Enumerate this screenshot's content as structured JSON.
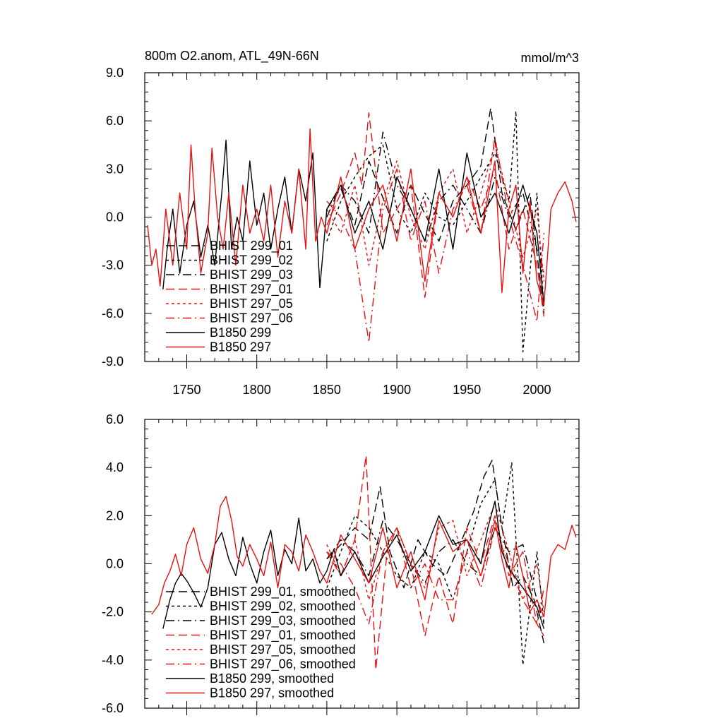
{
  "chart_data": [
    {
      "type": "line",
      "title": "800m O2.anom, ATL_49N-66N",
      "units": "mmol/m^3",
      "xlabel": "",
      "ylabel": "",
      "xlim": [
        1720,
        2030
      ],
      "ylim": [
        -9.0,
        9.0
      ],
      "y_ticks": [
        "9.0",
        "6.0",
        "3.0",
        "0.0",
        "-3.0",
        "-6.0",
        "-9.0"
      ],
      "x_ticks": [
        "1750",
        "1800",
        "1850",
        "1900",
        "1950",
        "2000"
      ],
      "legend_position": "lower-left",
      "series": [
        {
          "name": "BHIST 299_01",
          "color": "#000000",
          "dash": "long-dash",
          "x": [
            1850,
            1860,
            1870,
            1880,
            1890,
            1900,
            1910,
            1920,
            1930,
            1940,
            1950,
            1960,
            1967,
            1975,
            1985,
            1995,
            2005
          ],
          "y": [
            0.5,
            1.8,
            -0.5,
            3.5,
            1.2,
            -1.0,
            2.0,
            0.2,
            -1.5,
            1.0,
            2.0,
            3.2,
            6.8,
            1.5,
            -0.8,
            1.5,
            -6.0
          ]
        },
        {
          "name": "BHIST 299_02",
          "color": "#000000",
          "dash": "short-dash",
          "x": [
            1850,
            1860,
            1870,
            1880,
            1890,
            1900,
            1910,
            1920,
            1930,
            1940,
            1950,
            1960,
            1970,
            1980,
            1985,
            1990,
            2000,
            2005
          ],
          "y": [
            -1.5,
            1.0,
            2.5,
            3.8,
            4.5,
            0.5,
            -1.0,
            1.5,
            0.0,
            -0.5,
            1.0,
            2.5,
            4.0,
            1.0,
            6.6,
            -8.4,
            1.5,
            -5.8
          ]
        },
        {
          "name": "BHIST 299_03",
          "color": "#000000",
          "dash": "dash-dot",
          "x": [
            1850,
            1860,
            1870,
            1880,
            1890,
            1900,
            1910,
            1920,
            1930,
            1940,
            1950,
            1960,
            1970,
            1980,
            1990,
            2000,
            2005
          ],
          "y": [
            0.0,
            2.0,
            1.0,
            -1.0,
            5.3,
            2.0,
            0.5,
            -1.5,
            1.0,
            2.0,
            0.5,
            -1.0,
            2.5,
            0.0,
            1.5,
            -2.0,
            -3.5
          ]
        },
        {
          "name": "BHIST 297_01",
          "color": "#e81010",
          "dash": "long-dash",
          "x": [
            1850,
            1860,
            1870,
            1875,
            1880,
            1890,
            1900,
            1910,
            1920,
            1930,
            1940,
            1950,
            1960,
            1970,
            1980,
            1990,
            2000,
            2005
          ],
          "y": [
            -0.5,
            1.5,
            4.0,
            2.0,
            6.5,
            -1.0,
            0.5,
            2.0,
            -5.0,
            1.5,
            0.0,
            2.5,
            0.5,
            3.0,
            -2.0,
            0.5,
            -3.0,
            -6.2
          ]
        },
        {
          "name": "BHIST 297_05",
          "color": "#e81010",
          "dash": "short-dash",
          "x": [
            1850,
            1860,
            1870,
            1880,
            1890,
            1900,
            1910,
            1920,
            1930,
            1940,
            1950,
            1960,
            1970,
            1980,
            1990,
            2000,
            2005
          ],
          "y": [
            0.5,
            -1.0,
            2.0,
            -3.0,
            1.0,
            3.5,
            0.0,
            -2.0,
            1.5,
            3.0,
            -1.0,
            1.5,
            4.5,
            1.0,
            -2.5,
            0.5,
            -4.0
          ]
        },
        {
          "name": "BHIST 297_06",
          "color": "#e81010",
          "dash": "dash-dot",
          "x": [
            1850,
            1860,
            1870,
            1880,
            1890,
            1900,
            1910,
            1920,
            1930,
            1940,
            1950,
            1960,
            1970,
            1980,
            1990,
            2000,
            2005
          ],
          "y": [
            1.0,
            0.0,
            -2.0,
            -7.8,
            0.5,
            3.0,
            -1.5,
            1.0,
            -3.5,
            0.5,
            2.0,
            -1.0,
            5.0,
            0.0,
            -3.0,
            -6.5,
            -1.0
          ]
        },
        {
          "name": "B1850 299",
          "color": "#000000",
          "dash": "solid",
          "x": [
            1733,
            1736,
            1740,
            1745,
            1750,
            1755,
            1760,
            1765,
            1770,
            1775,
            1778,
            1782,
            1786,
            1790,
            1795,
            1800,
            1805,
            1810,
            1815,
            1820,
            1825,
            1830,
            1835,
            1840,
            1845,
            1850,
            1860,
            1870,
            1880,
            1890,
            1900,
            1910,
            1920,
            1930,
            1940,
            1950,
            1960,
            1970,
            1980,
            1990,
            2000,
            2005
          ],
          "y": [
            -4.5,
            -2.0,
            0.5,
            -3.5,
            -0.5,
            1.0,
            -2.5,
            -0.5,
            -3.0,
            1.5,
            4.8,
            -2.0,
            0.0,
            -1.5,
            3.5,
            -0.5,
            1.5,
            -2.0,
            0.5,
            2.5,
            -1.0,
            3.0,
            1.0,
            4.0,
            -4.4,
            0.5,
            2.0,
            -1.0,
            1.0,
            -2.0,
            2.5,
            0.5,
            -1.5,
            3.0,
            -2.0,
            4.0,
            0.0,
            1.5,
            -1.0,
            2.0,
            -1.0,
            -5.5
          ]
        },
        {
          "name": "B1850 297",
          "color": "#e81010",
          "dash": "solid",
          "x": [
            1722,
            1725,
            1728,
            1731,
            1735,
            1740,
            1745,
            1750,
            1753,
            1756,
            1760,
            1765,
            1768,
            1772,
            1776,
            1780,
            1785,
            1790,
            1795,
            1800,
            1805,
            1810,
            1815,
            1820,
            1825,
            1830,
            1835,
            1838,
            1842,
            1846,
            1850,
            1860,
            1870,
            1880,
            1890,
            1900,
            1910,
            1920,
            1930,
            1940,
            1950,
            1960,
            1970,
            1975,
            1980,
            1985,
            1990,
            1995,
            2000,
            2005,
            2010,
            2015,
            2020,
            2025,
            2028
          ],
          "y": [
            -0.5,
            -3.0,
            -2.0,
            -4.3,
            0.5,
            -3.0,
            1.5,
            -2.0,
            4.5,
            0.5,
            -3.5,
            -1.0,
            4.3,
            0.0,
            -2.0,
            1.5,
            -3.0,
            2.0,
            -1.0,
            0.5,
            -1.5,
            2.0,
            -2.5,
            1.0,
            -1.0,
            3.0,
            -2.0,
            5.5,
            -1.5,
            0.0,
            -1.0,
            2.5,
            -2.0,
            0.5,
            2.0,
            -1.5,
            3.0,
            -4.0,
            1.5,
            0.0,
            2.5,
            -1.0,
            3.5,
            -4.7,
            0.5,
            2.0,
            -3.5,
            1.0,
            -4.0,
            -5.5,
            0.5,
            1.5,
            2.2,
            1.0,
            -0.3
          ]
        }
      ]
    },
    {
      "type": "line",
      "title": "",
      "xlabel": "",
      "ylabel": "",
      "xlim": [
        1720,
        2030
      ],
      "ylim": [
        -6.0,
        6.0
      ],
      "y_ticks": [
        "6.0",
        "4.0",
        "2.0",
        "0.0",
        "-2.0",
        "-4.0",
        "-6.0"
      ],
      "legend_position": "lower-left",
      "series": [
        {
          "name": "BHIST 299_01, smoothed",
          "color": "#000000",
          "dash": "long-dash",
          "x": [
            1850,
            1860,
            1870,
            1880,
            1888,
            1895,
            1905,
            1915,
            1925,
            1935,
            1945,
            1955,
            1962,
            1968,
            1975,
            1983,
            1990,
            1998,
            2005
          ],
          "y": [
            0.2,
            0.8,
            1.5,
            1.0,
            3.2,
            0.5,
            -1.0,
            1.0,
            0.0,
            -0.5,
            0.8,
            2.2,
            3.6,
            4.3,
            1.5,
            -1.0,
            -0.5,
            -1.5,
            -3.3
          ]
        },
        {
          "name": "BHIST 299_02, smoothed",
          "color": "#000000",
          "dash": "short-dash",
          "x": [
            1850,
            1860,
            1870,
            1880,
            1890,
            1900,
            1910,
            1920,
            1930,
            1940,
            1950,
            1960,
            1970,
            1975,
            1982,
            1990,
            2000,
            2005
          ],
          "y": [
            -1.0,
            0.5,
            2.0,
            1.5,
            0.5,
            -0.5,
            -1.0,
            0.5,
            0.0,
            -1.5,
            0.5,
            2.5,
            3.5,
            1.5,
            4.2,
            -4.2,
            0.5,
            -2.5
          ]
        },
        {
          "name": "BHIST 299_03, smoothed",
          "color": "#000000",
          "dash": "dash-dot",
          "x": [
            1850,
            1860,
            1870,
            1880,
            1890,
            1900,
            1910,
            1920,
            1930,
            1940,
            1950,
            1960,
            1970,
            1980,
            1990,
            2000,
            2005
          ],
          "y": [
            0.2,
            1.0,
            0.5,
            -0.5,
            1.8,
            1.0,
            0.0,
            -0.8,
            0.5,
            1.0,
            0.0,
            -0.5,
            1.5,
            0.5,
            0.8,
            -1.5,
            -2.5
          ]
        },
        {
          "name": "BHIST 297_01, smoothed",
          "color": "#e81010",
          "dash": "long-dash",
          "x": [
            1850,
            1860,
            1870,
            1878,
            1885,
            1893,
            1900,
            1910,
            1920,
            1930,
            1940,
            1950,
            1960,
            1970,
            1980,
            1990,
            2000,
            2005
          ],
          "y": [
            0.5,
            -0.5,
            1.0,
            4.5,
            -4.4,
            0.5,
            1.5,
            0.0,
            -3.0,
            -0.5,
            -2.5,
            1.5,
            0.0,
            2.0,
            -0.5,
            0.5,
            -2.5,
            -3.0
          ]
        },
        {
          "name": "BHIST 297_05, smoothed",
          "color": "#e81010",
          "dash": "short-dash",
          "x": [
            1850,
            1860,
            1870,
            1880,
            1890,
            1900,
            1910,
            1920,
            1930,
            1940,
            1950,
            1960,
            1970,
            1980,
            1990,
            2000,
            2005
          ],
          "y": [
            0.8,
            -0.5,
            1.0,
            -1.5,
            0.5,
            1.5,
            0.0,
            -1.0,
            1.5,
            1.8,
            -0.5,
            1.0,
            2.5,
            0.5,
            -1.5,
            0.0,
            -2.0
          ]
        },
        {
          "name": "BHIST 297_06, smoothed",
          "color": "#e81010",
          "dash": "dash-dot",
          "x": [
            1850,
            1860,
            1870,
            1880,
            1890,
            1900,
            1910,
            1920,
            1930,
            1940,
            1950,
            1960,
            1970,
            1980,
            1990,
            2000,
            2005
          ],
          "y": [
            0.5,
            0.0,
            -1.0,
            -2.5,
            0.5,
            1.5,
            -1.0,
            0.0,
            -1.5,
            -1.5,
            0.5,
            -1.0,
            1.5,
            0.0,
            -1.5,
            -2.5,
            -1.0
          ]
        },
        {
          "name": "B1850 299, smoothed",
          "color": "#000000",
          "dash": "solid",
          "x": [
            1733,
            1738,
            1742,
            1746,
            1750,
            1755,
            1760,
            1765,
            1770,
            1775,
            1780,
            1785,
            1790,
            1795,
            1800,
            1805,
            1810,
            1815,
            1820,
            1825,
            1830,
            1835,
            1840,
            1845,
            1850,
            1855,
            1860,
            1870,
            1880,
            1890,
            1900,
            1910,
            1920,
            1930,
            1940,
            1950,
            1960,
            1965,
            1970,
            1975,
            1980,
            1990,
            2000,
            2005
          ],
          "y": [
            -2.7,
            -1.5,
            -0.8,
            -0.4,
            -0.7,
            -1.2,
            -1.8,
            -1.0,
            0.8,
            1.3,
            0.2,
            -0.5,
            1.1,
            0.0,
            -0.8,
            0.5,
            1.4,
            -0.5,
            0.6,
            0.0,
            1.9,
            -0.3,
            0.2,
            -0.8,
            -0.3,
            0.6,
            -0.5,
            0.5,
            -0.8,
            0.3,
            1.2,
            -0.3,
            0.5,
            2.0,
            0.8,
            1.0,
            0.0,
            1.5,
            2.6,
            0.5,
            -0.2,
            -1.0,
            -1.8,
            -2.7
          ]
        },
        {
          "name": "B1850 297, smoothed",
          "color": "#e81010",
          "dash": "solid",
          "x": [
            1725,
            1730,
            1734,
            1738,
            1742,
            1746,
            1750,
            1755,
            1760,
            1765,
            1770,
            1774,
            1778,
            1782,
            1786,
            1790,
            1795,
            1800,
            1805,
            1810,
            1815,
            1820,
            1825,
            1830,
            1835,
            1840,
            1845,
            1850,
            1860,
            1870,
            1880,
            1890,
            1900,
            1910,
            1920,
            1930,
            1940,
            1950,
            1960,
            1970,
            1975,
            1980,
            1985,
            1990,
            1995,
            2000,
            2005,
            2010,
            2015,
            2020,
            2025,
            2028
          ],
          "y": [
            -2.1,
            -1.7,
            -0.8,
            -0.3,
            0.4,
            -0.5,
            0.8,
            1.5,
            0.2,
            -0.4,
            0.8,
            2.4,
            2.8,
            1.8,
            0.3,
            -0.1,
            0.8,
            0.2,
            -0.5,
            0.9,
            -1.0,
            0.8,
            0.5,
            -0.3,
            1.2,
            0.5,
            -0.3,
            -0.8,
            1.2,
            0.2,
            -0.8,
            1.5,
            -1.0,
            0.5,
            -1.5,
            1.8,
            0.5,
            1.0,
            -0.5,
            1.8,
            0.2,
            -1.0,
            0.8,
            -0.5,
            -2.0,
            -1.5,
            -2.2,
            0.3,
            0.8,
            0.6,
            1.6,
            1.1
          ]
        }
      ]
    }
  ]
}
